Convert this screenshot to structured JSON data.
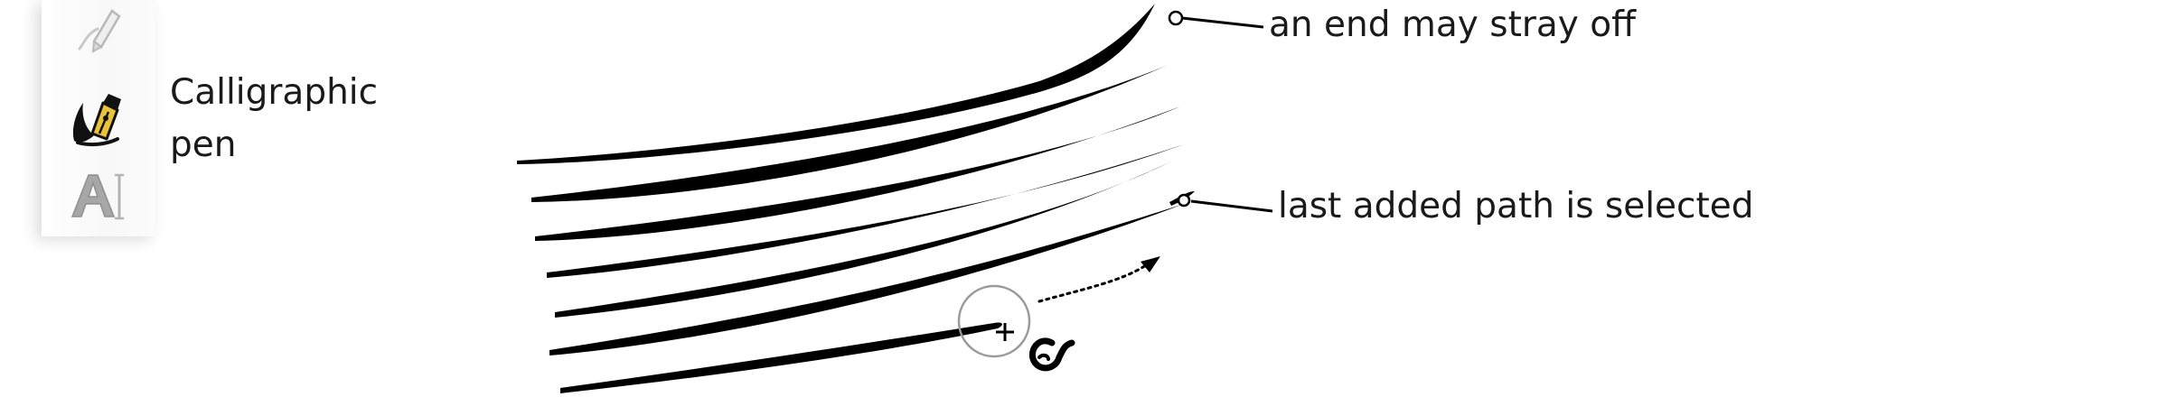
{
  "toolbox": {
    "tools": [
      {
        "name": "pencil",
        "icon": "pencil-icon",
        "state": "faded"
      },
      {
        "name": "calligraphic",
        "icon": "calligraphy-pen-icon",
        "state": "active"
      },
      {
        "name": "text",
        "icon": "text-tool-icon",
        "state": "faded"
      }
    ],
    "active_tool_label": "Calligraphic pen"
  },
  "annotations": {
    "stray_end": "an end may stray off",
    "last_selected": "last added path is selected"
  },
  "colors": {
    "stroke": "#000000",
    "pen_accent": "#e9c23a",
    "cursor_ring": "#8a8a8a",
    "text": "#1a1a1a"
  },
  "canvas": {
    "stroke_count": 7,
    "icons": [
      "crosshair-cursor-icon",
      "spiral-cursor-icon",
      "dotted-arrow-icon"
    ]
  }
}
